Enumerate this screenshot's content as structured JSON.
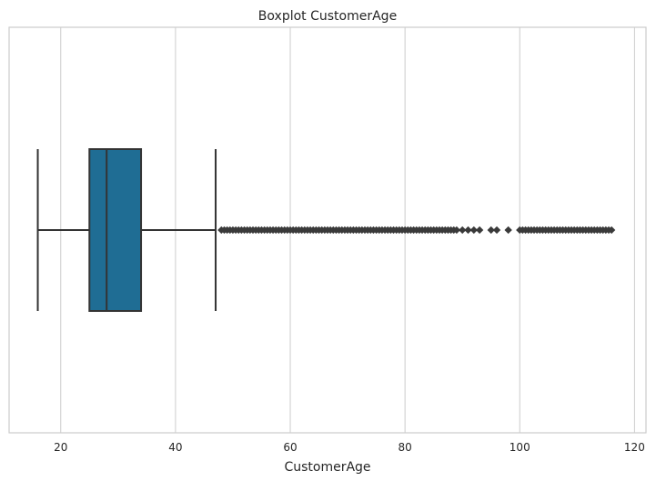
{
  "chart_data": {
    "type": "boxplot",
    "title": "Boxplot CustomerAge",
    "xlabel": "CustomerAge",
    "ylabel": "",
    "xlim": [
      11,
      122
    ],
    "x_ticks": [
      20,
      40,
      60,
      80,
      100,
      120
    ],
    "grid": true,
    "box": {
      "whisker_low": 16,
      "q1": 25,
      "median": 28,
      "q3": 34,
      "whisker_high": 47,
      "fill": "#1f6d94",
      "edge": "#333333"
    },
    "outliers": [
      48,
      48.5,
      49,
      49.5,
      50,
      50.5,
      51,
      51.5,
      52,
      52.5,
      53,
      53.5,
      54,
      54.5,
      55,
      55.5,
      56,
      56.5,
      57,
      57.5,
      58,
      58.5,
      59,
      59.5,
      60,
      60.5,
      61,
      61.5,
      62,
      62.5,
      63,
      63.5,
      64,
      64.5,
      65,
      65.5,
      66,
      66.5,
      67,
      67.5,
      68,
      68.5,
      69,
      69.5,
      70,
      70.5,
      71,
      71.5,
      72,
      72.5,
      73,
      73.5,
      74,
      74.5,
      75,
      75.5,
      76,
      76.5,
      77,
      77.5,
      78,
      78.5,
      79,
      79.5,
      80,
      80.5,
      81,
      81.5,
      82,
      82.5,
      83,
      83.5,
      84,
      84.5,
      85,
      85.5,
      86,
      86.5,
      87,
      87.5,
      88,
      88.5,
      89,
      90,
      91,
      92,
      93,
      95,
      96,
      98,
      100,
      100.5,
      101,
      101.5,
      102,
      102.5,
      103,
      103.5,
      104,
      104.5,
      105,
      105.5,
      106,
      106.5,
      107,
      107.5,
      108,
      108.5,
      109,
      109.5,
      110,
      110.5,
      111,
      111.5,
      112,
      112.5,
      113,
      113.5,
      114,
      114.5,
      115,
      115.5,
      116
    ]
  }
}
